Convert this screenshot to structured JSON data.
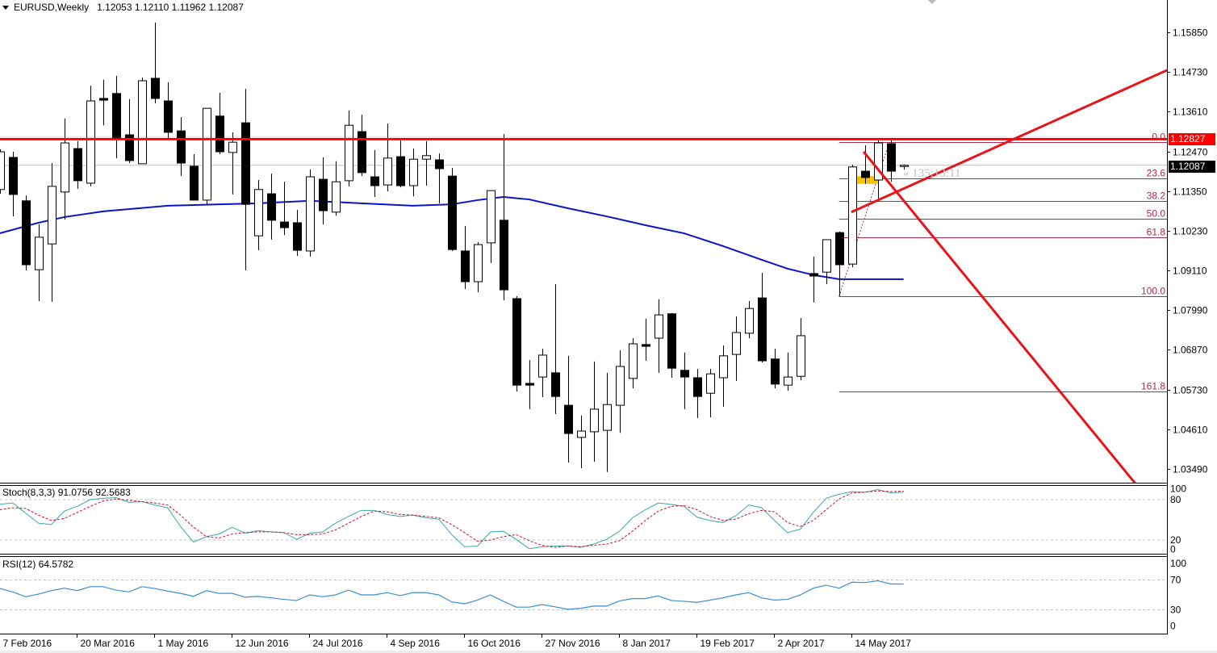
{
  "header": {
    "symbol_timeframe": "EURUSD,Weekly",
    "ohlc": "1.12053 1.12110 1.11962 1.12087"
  },
  "price_labels": {
    "resistance": "1.12827",
    "bid": "1.12087"
  },
  "countdown": "« 135:13:11",
  "colors": {
    "bull_body": "#ffffff",
    "bear_body": "#000000",
    "ma": "#0a14c8",
    "resistance": "#ff0000",
    "trendline": "#e8141c",
    "fib": "#b0284a",
    "stoch_main": "#3aa8a8",
    "stoch_signal": "#cc1030",
    "rsi": "#3a8fd0",
    "bid_line": "#c0c0c0",
    "highlight": "#f5c400"
  },
  "chart_data": {
    "type": "candlestick",
    "title": "EURUSD,Weekly",
    "price_ticks": [
      "1.15850",
      "1.14730",
      "1.13610",
      "1.12470",
      "1.11350",
      "1.10230",
      "1.09110",
      "1.07990",
      "1.06870",
      "1.05730",
      "1.04610",
      "1.03490"
    ],
    "date_labels": [
      {
        "bar": 0,
        "label": "7 Feb 2016"
      },
      {
        "bar": 6,
        "label": "20 Mar 2016"
      },
      {
        "bar": 12,
        "label": "1 May 2016"
      },
      {
        "bar": 18,
        "label": "12 Jun 2016"
      },
      {
        "bar": 24,
        "label": "24 Jul 2016"
      },
      {
        "bar": 30,
        "label": "4 Sep 2016"
      },
      {
        "bar": 36,
        "label": "16 Oct 2016"
      },
      {
        "bar": 42,
        "label": "27 Nov 2016"
      },
      {
        "bar": 48,
        "label": "8 Jan 2017"
      },
      {
        "bar": 54,
        "label": "19 Feb 2017"
      },
      {
        "bar": 60,
        "label": "2 Apr 2017"
      },
      {
        "bar": 66,
        "label": "14 May 2017"
      }
    ],
    "ohlc": [
      [
        1.114,
        1.1254,
        1.1128,
        1.1247
      ],
      [
        1.1231,
        1.1247,
        1.1064,
        1.1126
      ],
      [
        1.1108,
        1.1123,
        1.0911,
        1.0927
      ],
      [
        1.0913,
        1.1041,
        1.0824,
        1.1005
      ],
      [
        1.0986,
        1.1215,
        1.0822,
        1.1149
      ],
      [
        1.1133,
        1.1341,
        1.1055,
        1.1272
      ],
      [
        1.1256,
        1.1277,
        1.1142,
        1.1165
      ],
      [
        1.1158,
        1.1434,
        1.1149,
        1.1391
      ],
      [
        1.1398,
        1.1451,
        1.1322,
        1.1393
      ],
      [
        1.1412,
        1.1462,
        1.1229,
        1.1284
      ],
      [
        1.1295,
        1.1396,
        1.1215,
        1.1222
      ],
      [
        1.1213,
        1.1457,
        1.1213,
        1.1448
      ],
      [
        1.1455,
        1.1613,
        1.1384,
        1.1398
      ],
      [
        1.1391,
        1.1444,
        1.1284,
        1.1302
      ],
      [
        1.1306,
        1.1345,
        1.1178,
        1.1215
      ],
      [
        1.1206,
        1.124,
        1.111,
        1.111
      ],
      [
        1.111,
        1.137,
        1.1096,
        1.137
      ],
      [
        1.1348,
        1.1414,
        1.124,
        1.1247
      ],
      [
        1.1245,
        1.1302,
        1.1126,
        1.1274
      ],
      [
        1.1329,
        1.1425,
        1.0911,
        1.1098
      ],
      [
        1.1009,
        1.1167,
        1.0968,
        1.114
      ],
      [
        1.1128,
        1.1185,
        1.0998,
        1.1053
      ],
      [
        1.1048,
        1.1162,
        1.1011,
        1.1032
      ],
      [
        1.1046,
        1.1082,
        1.0952,
        1.0968
      ],
      [
        1.0966,
        1.1197,
        1.095,
        1.1176
      ],
      [
        1.1169,
        1.1231,
        1.1041,
        1.108
      ],
      [
        1.1076,
        1.122,
        1.1066,
        1.1162
      ],
      [
        1.1165,
        1.1364,
        1.1149,
        1.1322
      ],
      [
        1.1304,
        1.1352,
        1.1178,
        1.1188
      ],
      [
        1.1176,
        1.1252,
        1.1119,
        1.1151
      ],
      [
        1.1153,
        1.1327,
        1.1135,
        1.1229
      ],
      [
        1.1233,
        1.1279,
        1.1146,
        1.1151
      ],
      [
        1.1151,
        1.1256,
        1.1121,
        1.1226
      ],
      [
        1.1226,
        1.1277,
        1.1151,
        1.1236
      ],
      [
        1.1224,
        1.1242,
        1.1101,
        1.1199
      ],
      [
        1.1178,
        1.1201,
        1.0966,
        1.097
      ],
      [
        1.0966,
        1.1037,
        1.0858,
        1.0879
      ],
      [
        1.0879,
        1.0991,
        1.0849,
        1.0984
      ],
      [
        1.0989,
        1.1137,
        1.0932,
        1.1137
      ],
      [
        1.1053,
        1.1297,
        1.0826,
        1.0856
      ],
      [
        1.0831,
        1.0838,
        1.0568,
        1.0586
      ],
      [
        1.0591,
        1.0657,
        1.0518,
        1.0586
      ],
      [
        1.0609,
        1.0689,
        1.0552,
        1.0671
      ],
      [
        1.0621,
        1.0872,
        1.0504,
        1.0554
      ],
      [
        1.0529,
        1.0669,
        1.0367,
        1.0449
      ],
      [
        1.0438,
        1.05,
        1.0351,
        1.0456
      ],
      [
        1.0454,
        1.0653,
        1.0369,
        1.0518
      ],
      [
        1.0458,
        1.0621,
        1.034,
        1.0531
      ],
      [
        1.0529,
        1.0685,
        1.0451,
        1.0639
      ],
      [
        1.0605,
        1.0719,
        1.0577,
        1.0703
      ],
      [
        1.0701,
        1.0774,
        1.0655,
        1.0696
      ],
      [
        1.0719,
        1.0829,
        1.0621,
        1.0785
      ],
      [
        1.0788,
        1.079,
        1.0607,
        1.0634
      ],
      [
        1.0628,
        1.0678,
        1.0518,
        1.0609
      ],
      [
        1.0607,
        1.0632,
        1.0493,
        1.0554
      ],
      [
        1.0563,
        1.0632,
        1.0495,
        1.0618
      ],
      [
        1.0607,
        1.0698,
        1.0525,
        1.0669
      ],
      [
        1.0673,
        1.0781,
        1.0598,
        1.0735
      ],
      [
        1.0733,
        1.0824,
        1.0719,
        1.0803
      ],
      [
        1.0833,
        1.0904,
        1.065,
        1.0655
      ],
      [
        1.066,
        1.0689,
        1.0577,
        1.0589
      ],
      [
        1.0586,
        1.0678,
        1.057,
        1.0609
      ],
      [
        1.0611,
        1.0776,
        1.06,
        1.0726
      ],
      [
        1.0902,
        1.095,
        1.082,
        1.0895
      ],
      [
        1.0906,
        1.0998,
        1.0872,
        1.0998
      ],
      [
        1.1018,
        1.1021,
        1.0838,
        1.0927
      ],
      [
        1.0929,
        1.121,
        1.092,
        1.1204
      ],
      [
        1.1192,
        1.1265,
        1.1156,
        1.1174
      ],
      [
        1.1167,
        1.1279,
        1.111,
        1.1272
      ],
      [
        1.127,
        1.1281,
        1.1162,
        1.1192
      ],
      [
        1.12053,
        1.1211,
        1.11962,
        1.12087
      ]
    ],
    "ma": [
      [
        0,
        1.1016
      ],
      [
        3,
        1.1046
      ],
      [
        5,
        1.1062
      ],
      [
        8,
        1.1078
      ],
      [
        13,
        1.1094
      ],
      [
        20,
        1.1101
      ],
      [
        24,
        1.1108
      ],
      [
        28,
        1.1101
      ],
      [
        32,
        1.1094
      ],
      [
        35,
        1.1098
      ],
      [
        37,
        1.111
      ],
      [
        39,
        1.1119
      ],
      [
        41,
        1.1112
      ],
      [
        44,
        1.1087
      ],
      [
        47,
        1.1064
      ],
      [
        50,
        1.1039
      ],
      [
        53,
        1.1016
      ],
      [
        56,
        1.098
      ],
      [
        59,
        1.0941
      ],
      [
        61,
        1.0916
      ],
      [
        63,
        1.0898
      ],
      [
        65,
        1.0886
      ],
      [
        70,
        1.0886
      ]
    ],
    "resistance": 1.12827,
    "bid": 1.12087,
    "fibonacci": {
      "from_bar": 65,
      "high": 1.1275,
      "low": 1.0838,
      "levels": [
        {
          "ratio": 0.0,
          "label": "0.0"
        },
        {
          "ratio": 0.236,
          "label": "23.6"
        },
        {
          "ratio": 0.382,
          "label": "38.2"
        },
        {
          "ratio": 0.5,
          "label": "50.0"
        },
        {
          "ratio": 0.618,
          "label": "61.8"
        },
        {
          "ratio": 1.0,
          "label": "100.0"
        },
        {
          "ratio": 1.618,
          "label": "161.8"
        }
      ],
      "swing": [
        [
          65,
          1.0838
        ],
        [
          68.9,
          1.1275
        ]
      ]
    },
    "trendlines": [
      {
        "name": "ascending",
        "from": [
          65.95,
          1.1076
        ],
        "to": [
          90.4,
          1.1478
        ]
      },
      {
        "name": "descending",
        "from": [
          66.9,
          1.1247
        ],
        "to": [
          88.0,
          1.0305
        ]
      }
    ],
    "highlight_box": {
      "from_bar": 66.3,
      "to_bar": 68.0,
      "top": 1.1178,
      "bottom": 1.1156
    },
    "stoch": {
      "label": "Stoch(8,3,3) 91.0756 92.5683",
      "levels": [
        20,
        80
      ],
      "scale_labels": [
        "100",
        "80",
        "20",
        "0"
      ],
      "main": [
        73,
        75,
        60,
        45,
        43,
        63,
        70,
        80,
        82,
        83,
        76,
        77,
        72,
        68,
        40,
        17,
        25,
        29,
        39,
        30,
        34,
        32,
        31,
        21,
        30,
        32,
        45,
        55,
        64,
        64,
        58,
        55,
        57,
        53,
        51,
        28,
        10,
        11,
        32,
        33,
        21,
        7,
        10,
        11,
        11,
        9,
        14,
        21,
        33,
        53,
        65,
        75,
        73,
        70,
        54,
        49,
        46,
        56,
        72,
        68,
        49,
        31,
        36,
        61,
        82,
        88,
        92,
        91,
        95,
        90,
        91.0756
      ],
      "signal": [
        65,
        68,
        67,
        57,
        49,
        52,
        61,
        70,
        78,
        81,
        79,
        77,
        75,
        72,
        57,
        39,
        25,
        23,
        29,
        31,
        32,
        32,
        31,
        28,
        28,
        29,
        35,
        45,
        55,
        63,
        62,
        58,
        57,
        55,
        53,
        43,
        31,
        18,
        20,
        25,
        28,
        19,
        12,
        9,
        11,
        10,
        12,
        14,
        19,
        33,
        49,
        63,
        70,
        71,
        65,
        55,
        49,
        51,
        59,
        64,
        62,
        46,
        40,
        49,
        65,
        81,
        90,
        91,
        93,
        92,
        92.5683
      ]
    },
    "rsi": {
      "label": "RSI(12) 64.5782",
      "levels": [
        30,
        70
      ],
      "scale_labels": [
        "100",
        "70",
        "30",
        "0"
      ],
      "values": [
        58.6,
        54,
        47.5,
        51,
        55.7,
        59,
        55.7,
        61,
        61,
        56.4,
        54,
        61,
        58.6,
        55,
        52,
        48,
        55.7,
        52,
        52,
        47,
        48,
        46,
        44,
        42.5,
        50,
        47.5,
        50,
        56.4,
        50,
        50,
        53,
        49,
        53,
        53,
        50,
        40.7,
        38,
        43,
        50,
        41.4,
        33.6,
        33.6,
        37,
        34,
        30.7,
        32,
        35,
        35,
        42,
        45,
        45,
        48.6,
        42.5,
        41.4,
        40,
        43,
        46,
        50,
        53,
        46,
        43,
        44,
        50,
        59,
        63,
        59,
        67,
        66.4,
        69,
        64.6,
        64.5782
      ]
    }
  }
}
